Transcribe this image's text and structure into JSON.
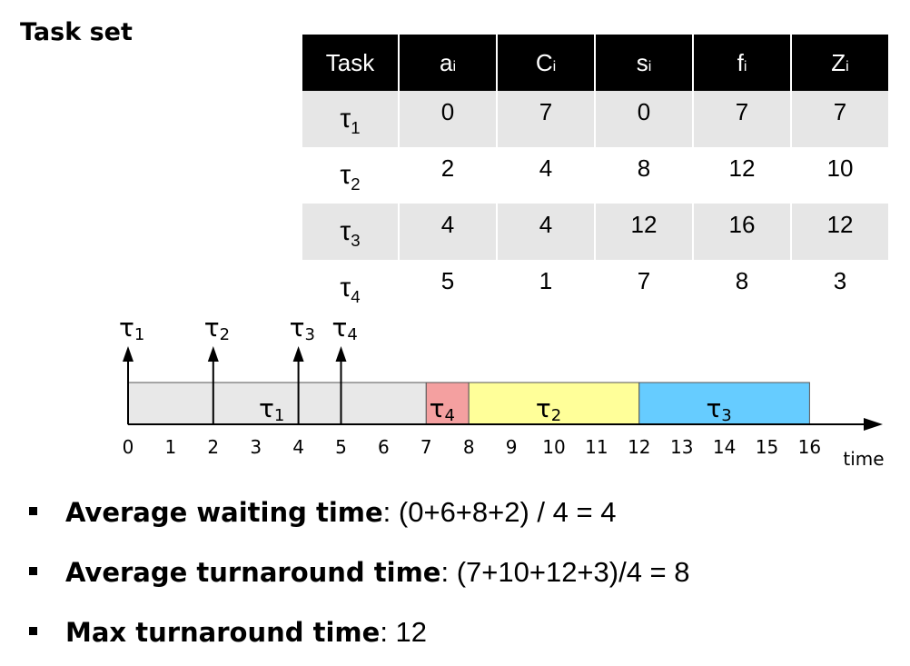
{
  "title": "Task set",
  "table": {
    "headers": [
      {
        "main": "Task",
        "sub": ""
      },
      {
        "main": "a",
        "sub": "i"
      },
      {
        "main": "C",
        "sub": "i"
      },
      {
        "main": "s",
        "sub": "i"
      },
      {
        "main": "f",
        "sub": "i"
      },
      {
        "main": "Z",
        "sub": "i"
      }
    ],
    "rows": [
      {
        "task": "τ",
        "idx": "1",
        "a": "0",
        "C": "7",
        "s": "0",
        "f": "7",
        "Z": "7"
      },
      {
        "task": "τ",
        "idx": "2",
        "a": "2",
        "C": "4",
        "s": "8",
        "f": "12",
        "Z": "10"
      },
      {
        "task": "τ",
        "idx": "3",
        "a": "4",
        "C": "4",
        "s": "12",
        "f": "16",
        "Z": "12"
      },
      {
        "task": "τ",
        "idx": "4",
        "a": "5",
        "C": "1",
        "s": "7",
        "f": "8",
        "Z": "3"
      }
    ]
  },
  "timeline": {
    "axis_label": "time",
    "ticks": [
      "0",
      "1",
      "2",
      "3",
      "4",
      "5",
      "6",
      "7",
      "8",
      "9",
      "10",
      "11",
      "12",
      "13",
      "14",
      "15",
      "16"
    ],
    "arrivals": [
      {
        "symbol": "τ",
        "idx": "1",
        "time": 0
      },
      {
        "symbol": "τ",
        "idx": "2",
        "time": 2
      },
      {
        "symbol": "τ",
        "idx": "3",
        "time": 4
      },
      {
        "symbol": "τ",
        "idx": "4",
        "time": 5
      }
    ],
    "segments": [
      {
        "symbol": "τ",
        "idx": "1",
        "start": 0,
        "end": 7,
        "color": "#e8e8e8"
      },
      {
        "symbol": "τ",
        "idx": "4",
        "start": 7,
        "end": 8,
        "color": "#f4a0a0"
      },
      {
        "symbol": "τ",
        "idx": "2",
        "start": 8,
        "end": 12,
        "color": "#ffff99"
      },
      {
        "symbol": "τ",
        "idx": "3",
        "start": 12,
        "end": 16,
        "color": "#66ccff"
      }
    ]
  },
  "bullets": [
    {
      "bold": "Average waiting time",
      "rest": ": (0+6+8+2) / 4 = 4"
    },
    {
      "bold": "Average turnaround time",
      "rest": ": (7+10+12+3)/4 = 8"
    },
    {
      "bold": "Max turnaround time",
      "rest": ": 12"
    }
  ]
}
